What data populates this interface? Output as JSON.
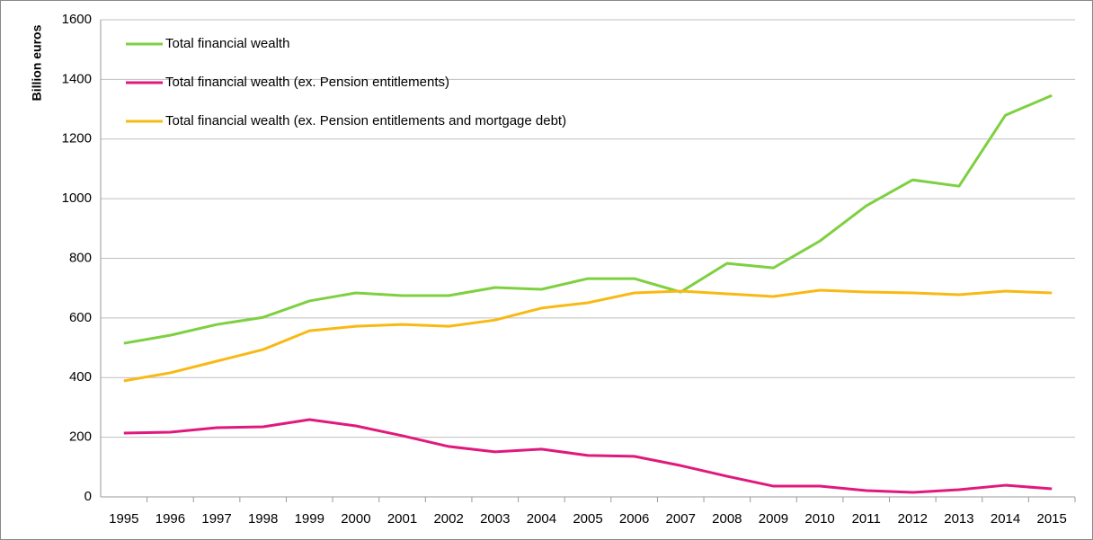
{
  "chart_data": {
    "type": "line",
    "y_label": "Billion euros",
    "categories": [
      "1995",
      "1996",
      "1997",
      "1998",
      "1999",
      "2000",
      "2001",
      "2002",
      "2003",
      "2004",
      "2005",
      "2006",
      "2007",
      "2008",
      "2009",
      "2010",
      "2011",
      "2012",
      "2013",
      "2014",
      "2015"
    ],
    "series": [
      {
        "name": "Total financial wealth",
        "color": "#7ed040",
        "values": [
          515,
          542,
          578,
          602,
          657,
          684,
          675,
          675,
          702,
          696,
          732,
          732,
          687,
          783,
          768,
          858,
          976,
          1063,
          1042,
          1280,
          1346
        ]
      },
      {
        "name": "Total financial wealth (ex. Pension entitlements)",
        "color": "#e0197d",
        "values": [
          214,
          217,
          232,
          235,
          259,
          238,
          205,
          169,
          151,
          160,
          139,
          136,
          105,
          69,
          36,
          36,
          21,
          15,
          24,
          39,
          27
        ]
      },
      {
        "name": "Total financial wealth (ex. Pension entitlements and mortgage debt)",
        "color": "#f9b914",
        "values": [
          389,
          416,
          455,
          494,
          557,
          572,
          578,
          572,
          593,
          633,
          651,
          684,
          690,
          681,
          672,
          693,
          687,
          684,
          678,
          690,
          684
        ]
      }
    ],
    "ylim": [
      0,
      1600
    ],
    "yticks": [
      0,
      200,
      400,
      600,
      800,
      1000,
      1200,
      1400,
      1600
    ],
    "grid": true,
    "legend": "top-left"
  }
}
